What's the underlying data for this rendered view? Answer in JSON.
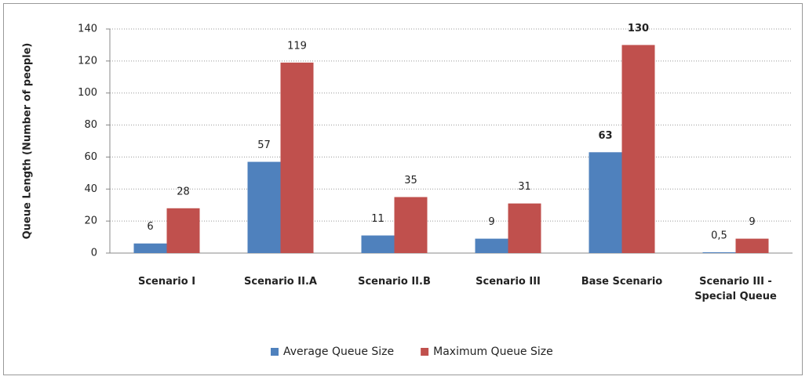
{
  "chart_data": {
    "type": "bar",
    "y_label": "Queue Length (Number of people)",
    "categories": [
      "Scenario I",
      "Scenario II.A",
      "Scenario II.B",
      "Scenario III",
      "Base Scenario",
      "Scenario III - Special Queue"
    ],
    "series": [
      {
        "name": "Average Queue Size",
        "color": "#4f81bd",
        "values": [
          6,
          57,
          11,
          9,
          63,
          0.5
        ],
        "value_labels": [
          "6",
          "57",
          "11",
          "9",
          "63",
          "0,5"
        ]
      },
      {
        "name": "Maximum Queue Size",
        "color": "#c0504d",
        "values": [
          28,
          119,
          35,
          31,
          130,
          9
        ]
      }
    ],
    "ylim": [
      0,
      140
    ],
    "yticks": [
      0,
      20,
      40,
      60,
      80,
      100,
      120,
      140
    ],
    "grid": true,
    "legend": "bottom"
  }
}
